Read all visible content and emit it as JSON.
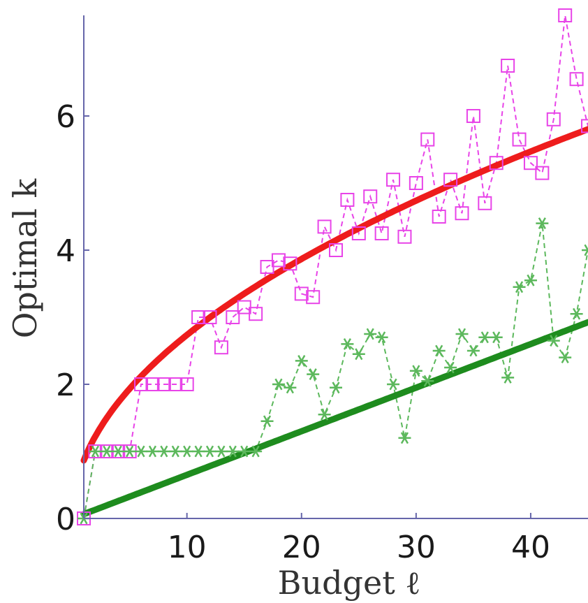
{
  "chart_data": {
    "type": "line",
    "title": "",
    "xlabel": "Budget ℓ",
    "ylabel": "Optimal k",
    "xlim": [
      1,
      45
    ],
    "ylim": [
      0,
      7.5
    ],
    "x_ticks": [
      10,
      20,
      30,
      40
    ],
    "y_ticks": [
      0,
      2,
      4,
      6
    ],
    "grid": false,
    "series": [
      {
        "marker": "square",
        "line_style": "dashed",
        "color": "#e844e8",
        "x": [
          1,
          2,
          3,
          4,
          5,
          6,
          7,
          8,
          9,
          10,
          11,
          12,
          13,
          14,
          15,
          16,
          17,
          18,
          19,
          20,
          21,
          22,
          23,
          24,
          25,
          26,
          27,
          28,
          29,
          30,
          31,
          32,
          33,
          34,
          35,
          36,
          37,
          38,
          39,
          40,
          41,
          42,
          43,
          44,
          45
        ],
        "y": [
          0,
          1,
          1,
          1,
          1,
          2,
          2,
          2,
          2,
          2,
          3,
          3,
          2.55,
          3,
          3.15,
          3.05,
          3.75,
          3.85,
          3.8,
          3.35,
          3.3,
          4.35,
          4,
          4.75,
          4.25,
          4.8,
          4.25,
          5.05,
          4.2,
          5,
          5.65,
          4.5,
          5.05,
          4.55,
          6,
          4.7,
          5.3,
          6.75,
          5.65,
          5.3,
          5.15,
          5.95,
          7.5,
          6.55,
          5.85
        ]
      },
      {
        "marker": "asterisk",
        "line_style": "dashed",
        "color": "#5cb85c",
        "x": [
          1,
          2,
          3,
          4,
          5,
          6,
          7,
          8,
          9,
          10,
          11,
          12,
          13,
          14,
          15,
          16,
          17,
          18,
          19,
          20,
          21,
          22,
          23,
          24,
          25,
          26,
          27,
          28,
          29,
          30,
          31,
          32,
          33,
          34,
          35,
          36,
          37,
          38,
          39,
          40,
          41,
          42,
          43,
          44,
          45
        ],
        "y": [
          0,
          1,
          1,
          1,
          1,
          1,
          1,
          1,
          1,
          1,
          1,
          1,
          1,
          1,
          1,
          1,
          1.45,
          2,
          1.95,
          2.35,
          2.15,
          1.55,
          1.95,
          2.6,
          2.45,
          2.75,
          2.7,
          2,
          1.2,
          2.2,
          2.05,
          2.5,
          2.25,
          2.75,
          2.5,
          2.7,
          2.7,
          2.1,
          3.45,
          3.55,
          4.4,
          2.65,
          2.4,
          3.05,
          4
        ]
      },
      {
        "marker": "none",
        "line_style": "solid",
        "color": "#ee1c1c",
        "fit": "0.865 * sqrt(x)",
        "x_range": [
          1,
          45
        ]
      },
      {
        "marker": "none",
        "line_style": "solid",
        "color": "#1e8c1e",
        "fit": "0.065 * x",
        "x_range": [
          1,
          45
        ]
      }
    ]
  }
}
